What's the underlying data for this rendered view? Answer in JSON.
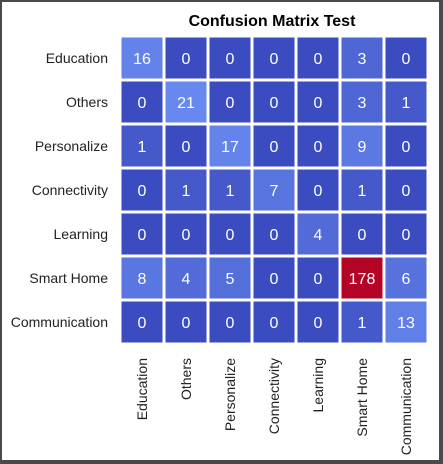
{
  "chart_data": {
    "type": "heatmap",
    "title": "Confusion Matrix Test",
    "rows": [
      "Education",
      "Others",
      "Personalize",
      "Connectivity",
      "Learning",
      "Smart Home",
      "Communication"
    ],
    "columns": [
      "Education",
      "Others",
      "Personalize",
      "Connectivity",
      "Learning",
      "Smart Home",
      "Communication"
    ],
    "values": [
      [
        16,
        0,
        0,
        0,
        0,
        3,
        0
      ],
      [
        0,
        21,
        0,
        0,
        0,
        3,
        1
      ],
      [
        1,
        0,
        17,
        0,
        0,
        9,
        0
      ],
      [
        0,
        1,
        1,
        7,
        0,
        1,
        0
      ],
      [
        0,
        0,
        0,
        0,
        4,
        0,
        0
      ],
      [
        8,
        4,
        5,
        0,
        0,
        178,
        6
      ],
      [
        0,
        0,
        0,
        0,
        0,
        1,
        13
      ]
    ],
    "colors": {
      "low": "#3b4cc0",
      "high": "#b40426"
    },
    "grid": false
  }
}
